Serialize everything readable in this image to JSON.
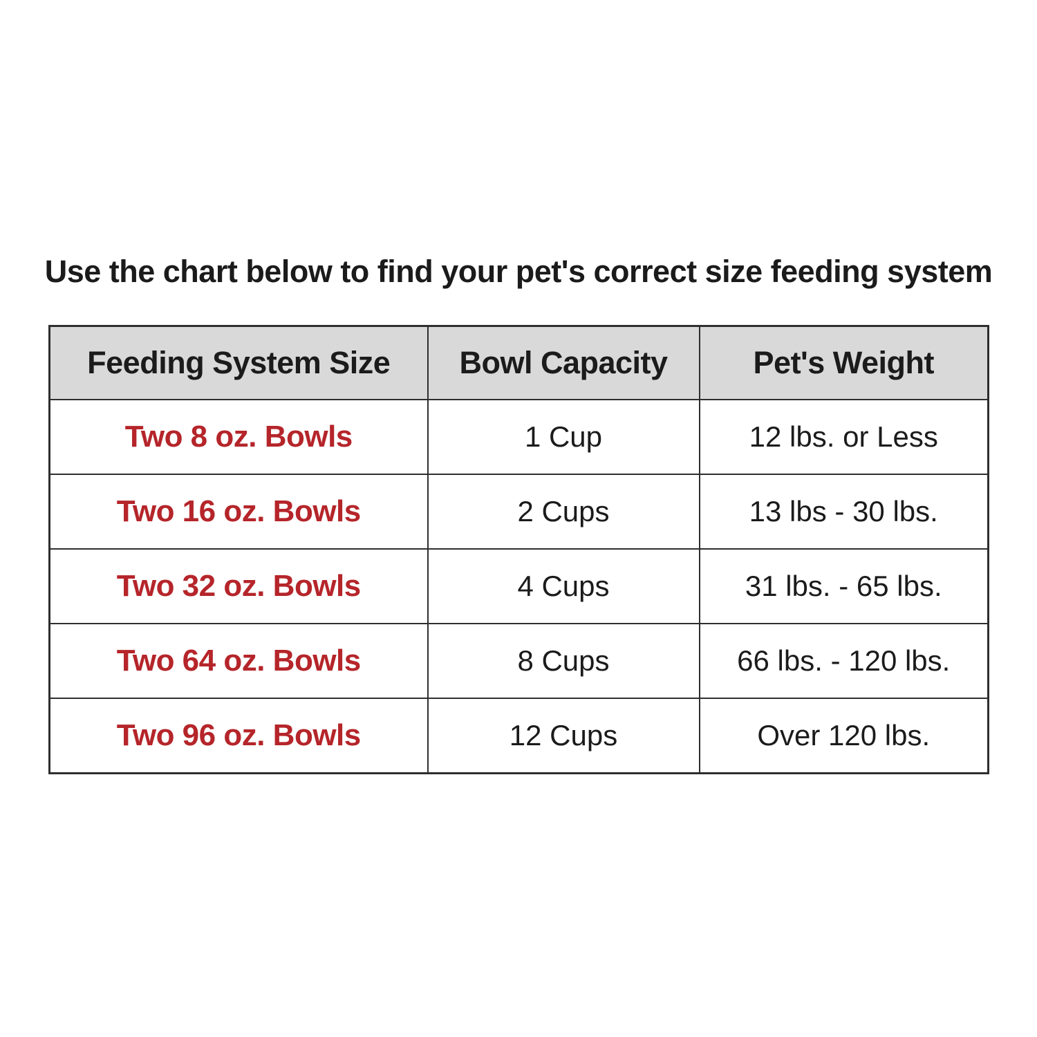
{
  "title": "Use the chart below to find your pet's correct size feeding system",
  "colors": {
    "accent_red": "#b5252a",
    "header_bg": "#d9d9d9",
    "border_color": "#2e2e2e",
    "text_color": "#1b1b1b"
  },
  "chart_data": {
    "type": "table",
    "title": "Use the chart below to find your pet's correct size feeding system",
    "columns": [
      "Feeding System Size",
      "Bowl Capacity",
      "Pet's Weight"
    ],
    "rows": [
      [
        "Two 8 oz. Bowls",
        "1 Cup",
        "12 lbs. or Less"
      ],
      [
        "Two 16 oz. Bowls",
        "2 Cups",
        "13 lbs - 30 lbs."
      ],
      [
        "Two 32 oz. Bowls",
        "4 Cups",
        "31 lbs. - 65 lbs."
      ],
      [
        "Two 64 oz. Bowls",
        "8 Cups",
        "66 lbs. - 120 lbs."
      ],
      [
        "Two 96 oz. Bowls",
        "12 Cups",
        "Over 120 lbs."
      ]
    ]
  }
}
